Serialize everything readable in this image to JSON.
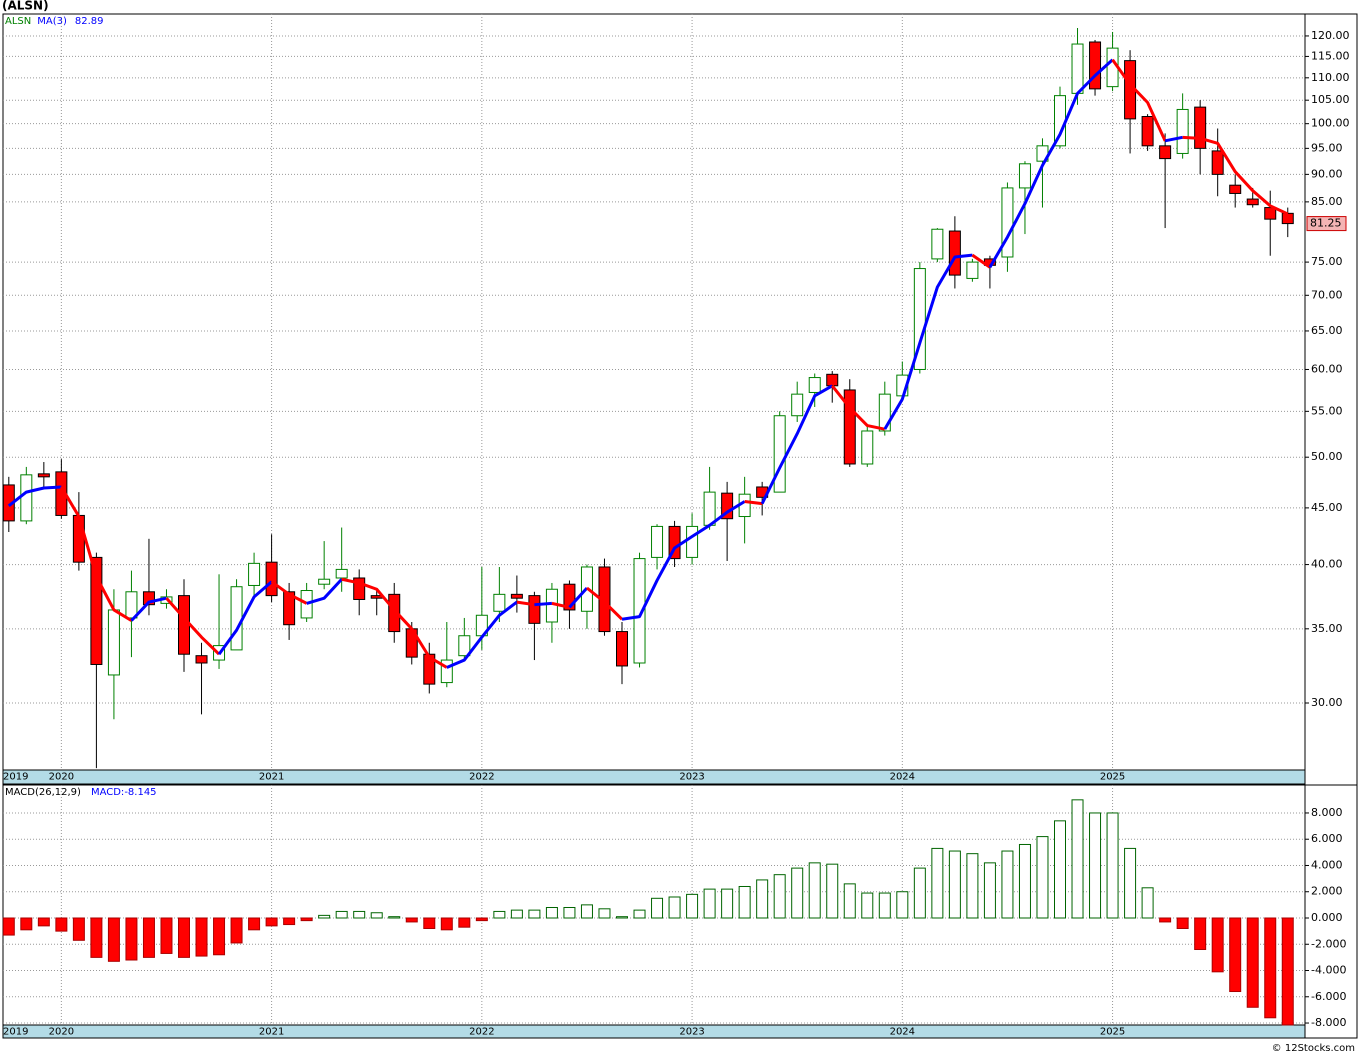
{
  "chart_data": [
    {
      "type": "candlestick",
      "title": "(ALSN)",
      "symbol": "ALSN",
      "categories": [
        "2019",
        null,
        null,
        "2020",
        null,
        null,
        null,
        null,
        null,
        null,
        null,
        null,
        null,
        null,
        null,
        "2021",
        null,
        null,
        null,
        null,
        null,
        null,
        null,
        null,
        null,
        null,
        null,
        "2022",
        null,
        null,
        null,
        null,
        null,
        null,
        null,
        null,
        null,
        null,
        null,
        "2023",
        null,
        null,
        null,
        null,
        null,
        null,
        null,
        null,
        null,
        null,
        null,
        "2024",
        null,
        null,
        null,
        null,
        null,
        null,
        null,
        null,
        null,
        null,
        null,
        "2025",
        null,
        null,
        null,
        null,
        null,
        null,
        null,
        null,
        null,
        null
      ],
      "open": [
        47.2,
        43.8,
        48.3,
        48.5,
        44.3,
        40.6,
        31.8,
        35.8,
        37.8,
        36.9,
        37.5,
        33.1,
        32.8,
        33.5,
        38.3,
        40.2,
        37.8,
        35.8,
        38.4,
        38.9,
        38.9,
        37.5,
        37.6,
        35,
        33.2,
        31.3,
        33.1,
        34.5,
        36.3,
        37.6,
        37.5,
        35.5,
        38.4,
        36.3,
        39.8,
        34.8,
        32.6,
        40.6,
        43.3,
        40.6,
        43.4,
        46.4,
        44.2,
        47,
        46.5,
        54.5,
        57.2,
        59.4,
        57.5,
        49.3,
        52.8,
        56.8,
        60,
        75.5,
        80,
        72.5,
        75.5,
        75.8,
        87.5,
        92.5,
        95.5,
        106.5,
        118.5,
        108,
        114,
        101.5,
        95.5,
        94,
        103.5,
        94.5,
        88,
        85.5,
        84,
        83
      ],
      "high": [
        48,
        49,
        49.5,
        49.8,
        46.5,
        41,
        38,
        39.5,
        42.2,
        38,
        38.8,
        34,
        39.2,
        38.8,
        41,
        42.6,
        38.5,
        38.5,
        42,
        43.2,
        39.6,
        38,
        38.5,
        35.5,
        34,
        35.5,
        35.8,
        39.8,
        39.8,
        39.1,
        37.8,
        38.5,
        38.7,
        40,
        40.5,
        35.5,
        41,
        43.5,
        43.8,
        44.5,
        49,
        47.5,
        48,
        47.5,
        55,
        58.5,
        59.5,
        59.8,
        58.8,
        53.5,
        58.5,
        61,
        75,
        80.5,
        82.5,
        75.5,
        76,
        88.5,
        92.5,
        97,
        108,
        122,
        119,
        121,
        116.5,
        102,
        98,
        106.5,
        105,
        99,
        90,
        87.5,
        87,
        84
      ],
      "low": [
        42.8,
        43.5,
        47,
        44,
        39.5,
        26.2,
        29,
        33,
        36,
        36.5,
        32,
        29.3,
        32.2,
        33.5,
        37.5,
        37,
        34.2,
        35.5,
        38,
        37.8,
        36,
        36,
        34,
        32.5,
        30.6,
        31,
        32.8,
        33.5,
        35.5,
        36.2,
        32.8,
        34,
        35,
        35,
        34.5,
        31.2,
        32.3,
        39.6,
        39.8,
        40,
        43,
        40.3,
        41.8,
        44.3,
        46.5,
        53.8,
        55.5,
        56,
        49,
        49,
        52.3,
        56.5,
        59.5,
        75,
        71,
        72,
        71,
        73.5,
        79.5,
        84,
        95,
        104,
        106,
        107,
        94,
        94.5,
        80.5,
        93,
        90,
        86,
        84,
        84,
        76,
        79
      ],
      "close": [
        43.8,
        48.2,
        48,
        44.3,
        40.2,
        32.5,
        36.4,
        37.8,
        36.8,
        37.4,
        33.2,
        32.6,
        33.8,
        38.2,
        40.1,
        37.5,
        35.3,
        37.9,
        38.8,
        39.6,
        37.2,
        37.3,
        34.8,
        33,
        31.2,
        32.8,
        34.5,
        36,
        37.6,
        37.3,
        35.4,
        38,
        36.4,
        39.8,
        34.8,
        32.4,
        40.5,
        43.3,
        40.5,
        43.3,
        46.5,
        44,
        46.3,
        46,
        54.5,
        57,
        59,
        58,
        49.3,
        52.8,
        57,
        59.3,
        74,
        80.3,
        73,
        75,
        74.5,
        87.5,
        92,
        95.5,
        106,
        118,
        107.5,
        117,
        101,
        95.5,
        93,
        103,
        95,
        90,
        86.5,
        84.5,
        82,
        81.25
      ],
      "up_color": "#008000",
      "down_color": "#ff0000",
      "symbol_color": "#008000",
      "overlay": {
        "name": "MA(3)",
        "color": "#0000ff",
        "rising_color": "#0000ff",
        "falling_color": "#ff0000",
        "values": [
          45.2,
          46.5,
          46.9,
          47,
          44.2,
          39,
          36.4,
          35.6,
          37,
          37.3,
          35.8,
          34.4,
          33.2,
          34.9,
          37.4,
          38.6,
          37.6,
          36.9,
          37.3,
          38.8,
          38.5,
          38,
          36.4,
          35,
          33,
          32.3,
          32.8,
          34.4,
          36,
          37,
          36.8,
          36.9,
          36.6,
          38.1,
          37,
          35.7,
          35.9,
          38.7,
          41.4,
          42.4,
          43.4,
          44.6,
          45.6,
          45.4,
          48.9,
          52.5,
          56.8,
          58,
          55.4,
          53.4,
          53,
          56.4,
          63.4,
          71.2,
          75.8,
          76.1,
          74.2,
          79,
          84.7,
          91.7,
          97.8,
          106.5,
          110.5,
          114.2,
          108.5,
          104.5,
          96.5,
          97.2,
          97,
          96,
          90.5,
          87,
          84.3,
          82.89
        ]
      },
      "log_scale": true,
      "grid": true,
      "ylim": [
        26.1,
        125.6
      ],
      "yticks": [
        {
          "value": 30,
          "label": "30.00"
        },
        {
          "value": 35,
          "label": "35.00"
        },
        {
          "value": 40,
          "label": "40.00"
        },
        {
          "value": 45,
          "label": "45.00"
        },
        {
          "value": 50,
          "label": "50.00"
        },
        {
          "value": 55,
          "label": "55.00"
        },
        {
          "value": 60,
          "label": "60.00"
        },
        {
          "value": 65,
          "label": "65.00"
        },
        {
          "value": 70,
          "label": "70.00"
        },
        {
          "value": 75,
          "label": "75.00"
        },
        {
          "value": 85,
          "label": "85.00"
        },
        {
          "value": 90,
          "label": "90.00"
        },
        {
          "value": 95,
          "label": "95.00"
        },
        {
          "value": 100,
          "label": "100.00"
        },
        {
          "value": 105,
          "label": "105.00"
        },
        {
          "value": 110,
          "label": "110.00"
        },
        {
          "value": 115,
          "label": "115.00"
        },
        {
          "value": 120,
          "label": "120.00"
        }
      ],
      "last_price_color": "#f4b4b4"
    },
    {
      "type": "histogram",
      "title": "MACD(26,12,9)",
      "value_prefix": "MACD:",
      "label_color": "#0000ff",
      "values": [
        -1.3,
        -0.9,
        -0.6,
        -1,
        -1.7,
        -3,
        -3.3,
        -3.2,
        -3,
        -2.7,
        -3,
        -2.9,
        -2.8,
        -1.9,
        -0.9,
        -0.6,
        -0.5,
        -0.2,
        0.2,
        0.5,
        0.5,
        0.4,
        0.1,
        -0.3,
        -0.8,
        -0.9,
        -0.7,
        -0.2,
        0.5,
        0.6,
        0.6,
        0.8,
        0.8,
        1,
        0.7,
        0.1,
        0.6,
        1.5,
        1.6,
        1.8,
        2.2,
        2.2,
        2.4,
        2.9,
        3.3,
        3.8,
        4.2,
        4.1,
        2.6,
        1.9,
        1.9,
        2,
        3.8,
        5.3,
        5.1,
        4.9,
        4.2,
        5.1,
        5.6,
        6.2,
        7.4,
        9,
        8,
        8,
        5.3,
        2.3,
        -0.3,
        -0.8,
        -2.4,
        -4.1,
        -5.6,
        -6.8,
        -7.6,
        -8.145
      ],
      "positive_color": "#006400",
      "negative_color": "#ff0000",
      "grid": true,
      "ylim": [
        -8.15,
        10.13
      ],
      "yticks": [
        {
          "value": 8,
          "label": "8.000"
        },
        {
          "value": 6,
          "label": "6.000"
        },
        {
          "value": 4,
          "label": "4.000"
        },
        {
          "value": 2,
          "label": "2.000"
        },
        {
          "value": 0,
          "label": "0.000"
        },
        {
          "value": -2,
          "label": "-2.000"
        },
        {
          "value": -4,
          "label": "-4.000"
        },
        {
          "value": -6,
          "label": "-6.000"
        },
        {
          "value": -8,
          "label": "-8.000"
        }
      ]
    }
  ],
  "footer": "© 12Stocks.com"
}
